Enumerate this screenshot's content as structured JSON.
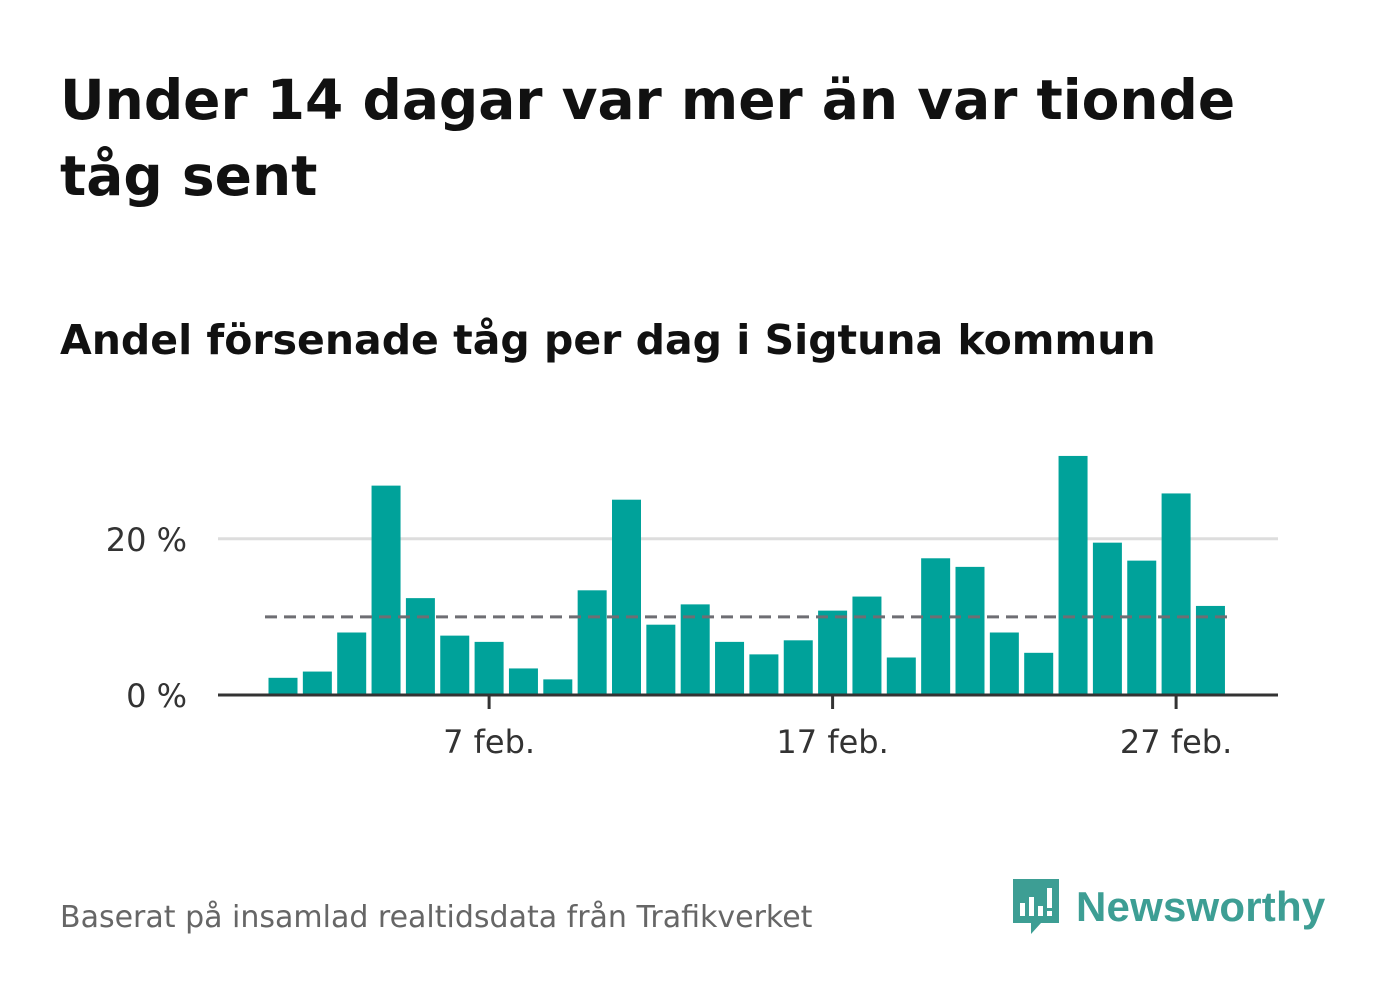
{
  "title": "Under 14 dagar var mer än var tionde tåg sent",
  "subtitle": "Andel försenade tåg per dag i Sigtuna kommun",
  "source": "Baserat på insamlad realtidsdata från Trafikverket",
  "brand": {
    "name": "Newsworthy",
    "color": "#3d9e94"
  },
  "colors": {
    "bar": "#00a29a",
    "reference": "#6e6e73",
    "grid": "#dddddd",
    "axis": "#333333"
  },
  "chart_data": {
    "type": "bar",
    "x": [
      "1 feb.",
      "2 feb.",
      "3 feb.",
      "4 feb.",
      "5 feb.",
      "6 feb.",
      "7 feb.",
      "8 feb.",
      "9 feb.",
      "10 feb.",
      "11 feb.",
      "12 feb.",
      "13 feb.",
      "14 feb.",
      "15 feb.",
      "16 feb.",
      "17 feb.",
      "18 feb.",
      "19 feb.",
      "20 feb.",
      "21 feb.",
      "22 feb.",
      "23 feb.",
      "24 feb.",
      "25 feb.",
      "26 feb.",
      "27 feb.",
      "28 feb."
    ],
    "values": [
      2.2,
      3.0,
      8.0,
      26.8,
      12.4,
      7.6,
      6.8,
      3.4,
      2.0,
      13.4,
      25.0,
      9.0,
      11.6,
      6.8,
      5.2,
      7.0,
      10.8,
      12.6,
      4.8,
      17.5,
      16.4,
      8.0,
      5.4,
      30.6,
      19.5,
      17.2,
      25.8,
      11.4
    ],
    "reference_line": {
      "value": 10,
      "style": "dashed"
    },
    "yticks": [
      {
        "value": 0,
        "label": "0 %"
      },
      {
        "value": 20,
        "label": "20 %"
      }
    ],
    "xticks": [
      {
        "index": 6,
        "label": "7 feb."
      },
      {
        "index": 16,
        "label": "17 feb."
      },
      {
        "index": 26,
        "label": "27 feb."
      }
    ],
    "ylim": [
      0,
      32
    ],
    "grid": true
  }
}
